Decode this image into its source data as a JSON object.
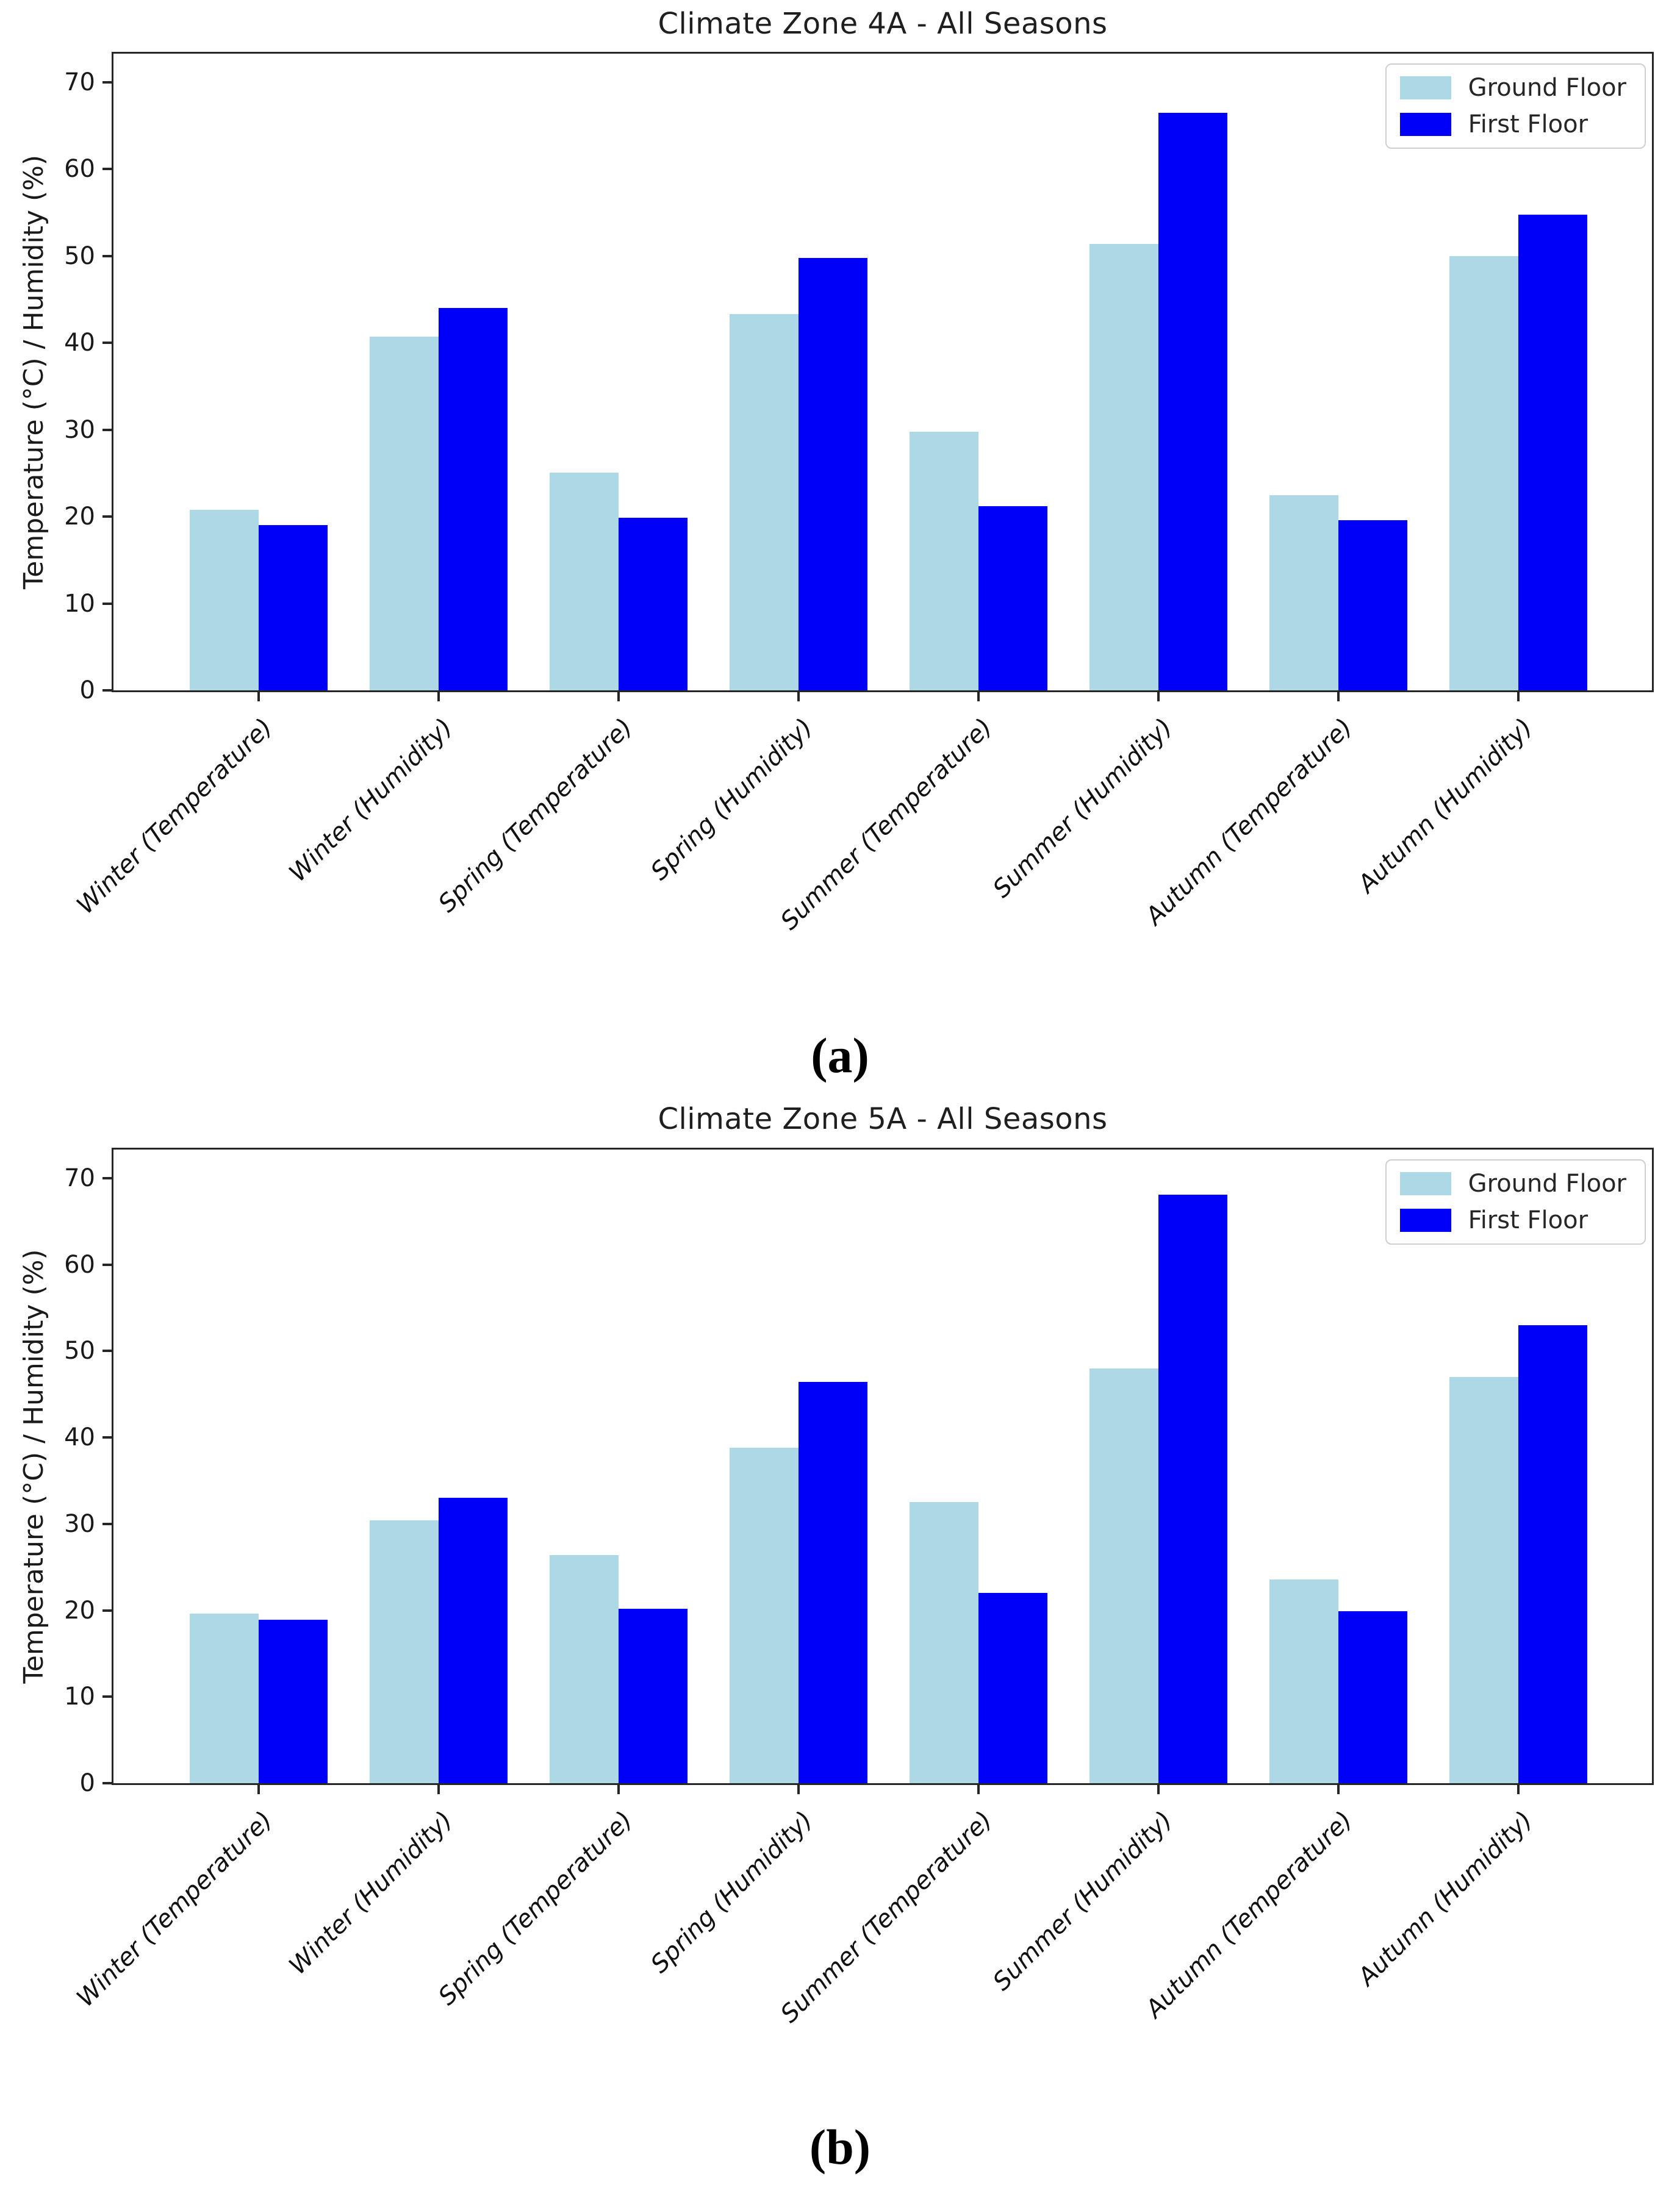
{
  "page": {
    "background": "#ffffff"
  },
  "colors": {
    "ground_floor": "#ADD8E6",
    "first_floor": "#0000FA",
    "axis": "#262626",
    "text": "#1a1a1a"
  },
  "chart_data": [
    {
      "type": "bar",
      "title": "Climate Zone 4A - All Seasons",
      "caption": "(a)",
      "xlabel": "",
      "ylabel": "Temperature (°C) / Humidity (%)",
      "ylim": [
        0,
        73.3
      ],
      "yticks": [
        0,
        10,
        20,
        30,
        40,
        50,
        60,
        70
      ],
      "grid": false,
      "legend_position": "top-right",
      "categories": [
        "Winter (Temperature)",
        "Winter (Humidity)",
        "Spring (Temperature)",
        "Spring (Humidity)",
        "Summer (Temperature)",
        "Summer (Humidity)",
        "Autumn (Temperature)",
        "Autumn (Humidity)"
      ],
      "series": [
        {
          "name": "Ground Floor",
          "color": "#ADD8E6",
          "values": [
            20.8,
            40.7,
            25.1,
            43.3,
            29.8,
            51.4,
            22.5,
            50.0
          ]
        },
        {
          "name": "First Floor",
          "color": "#0000FA",
          "values": [
            19.0,
            44.0,
            19.9,
            49.8,
            21.2,
            66.5,
            19.6,
            54.8
          ]
        }
      ]
    },
    {
      "type": "bar",
      "title": "Climate Zone 5A - All Seasons",
      "caption": "(b)",
      "xlabel": "",
      "ylabel": "Temperature (°C) / Humidity (%)",
      "ylim": [
        0,
        73.3
      ],
      "yticks": [
        0,
        10,
        20,
        30,
        40,
        50,
        60,
        70
      ],
      "grid": false,
      "legend_position": "top-right",
      "categories": [
        "Winter (Temperature)",
        "Winter (Humidity)",
        "Spring (Temperature)",
        "Spring (Humidity)",
        "Summer (Temperature)",
        "Summer (Humidity)",
        "Autumn (Temperature)",
        "Autumn (Humidity)"
      ],
      "series": [
        {
          "name": "Ground Floor",
          "color": "#ADD8E6",
          "values": [
            19.6,
            30.4,
            26.4,
            38.8,
            32.5,
            48.0,
            23.6,
            47.0
          ]
        },
        {
          "name": "First Floor",
          "color": "#0000FA",
          "values": [
            18.9,
            33.0,
            20.2,
            46.4,
            22.0,
            68.1,
            19.9,
            53.0
          ]
        }
      ]
    }
  ]
}
